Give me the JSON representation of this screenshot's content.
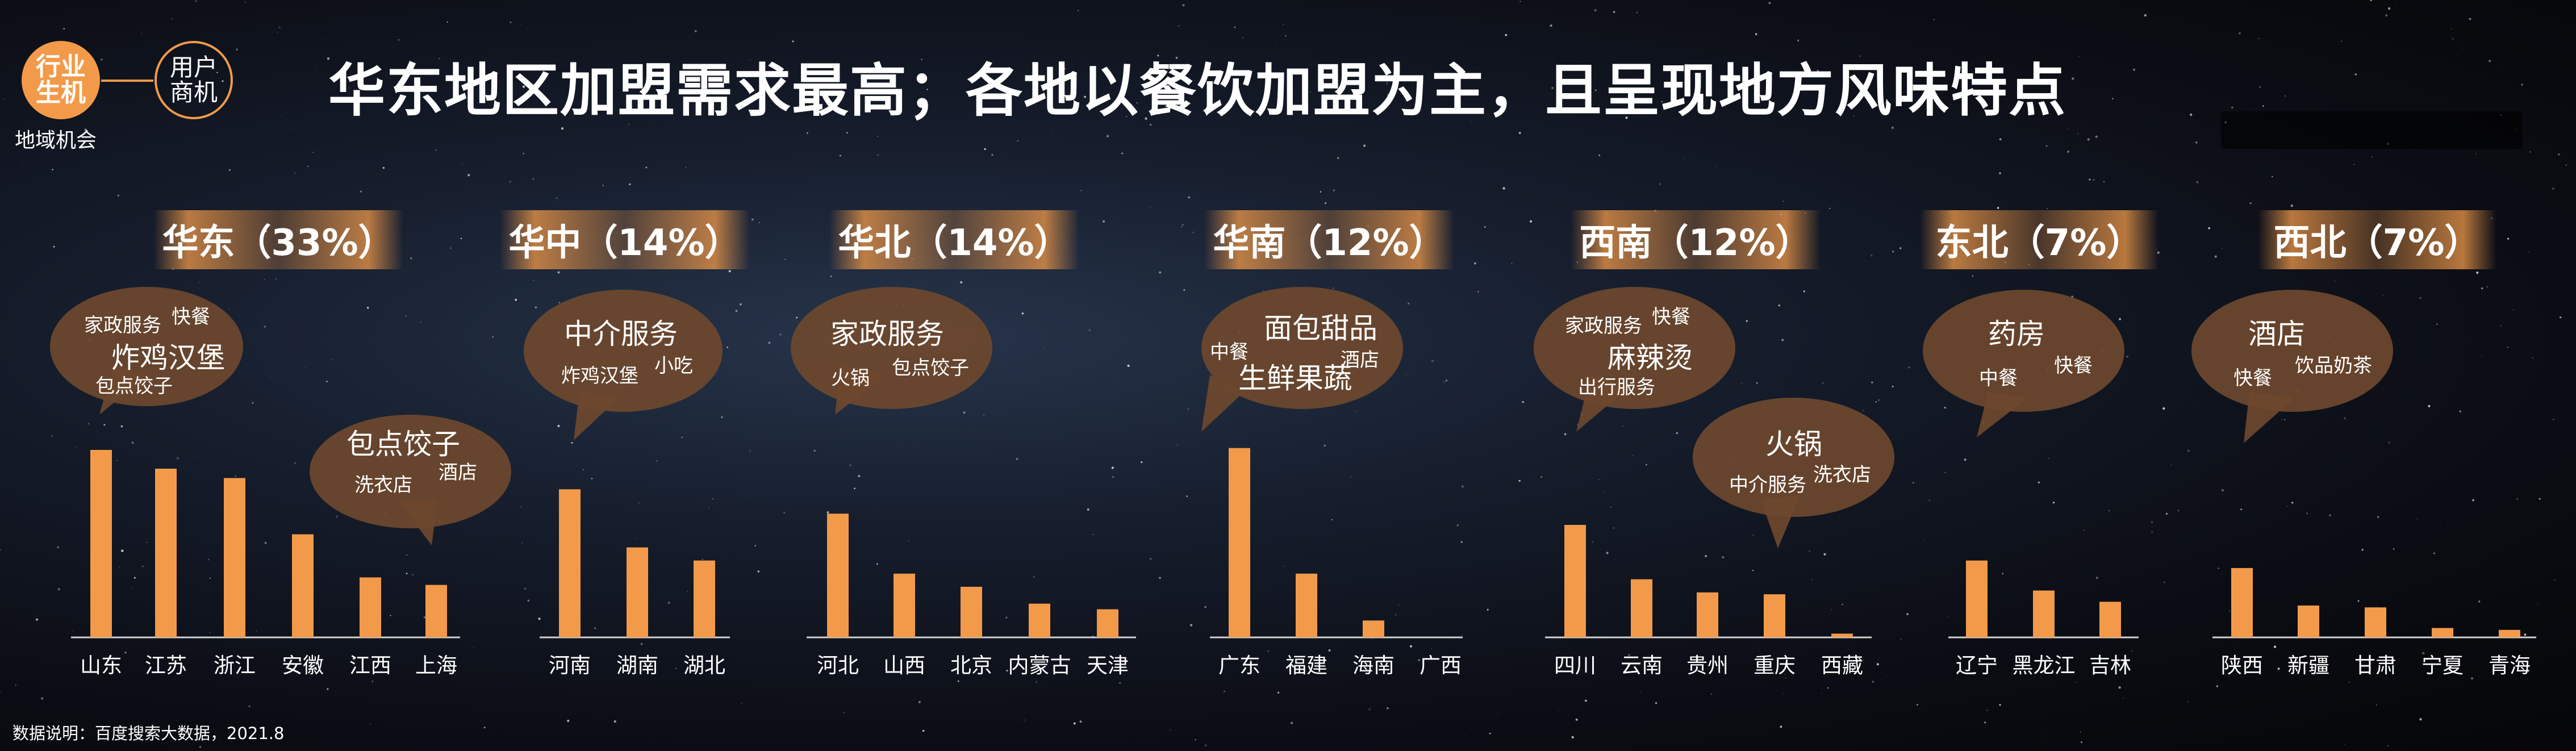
{
  "header": {
    "badge_industry": "行业生机",
    "badge_industry_l1": "行业",
    "badge_industry_l2": "生机",
    "badge_user_l1": "用户",
    "badge_user_l2": "商机",
    "sublabel": "地域机会",
    "title": "华东地区加盟需求最高；各地以餐饮加盟为主，且呈现地方风味特点"
  },
  "regions": [
    {
      "label": "华东（33%）"
    },
    {
      "label": "华中（14%）"
    },
    {
      "label": "华北（14%）"
    },
    {
      "label": "华南（12%）"
    },
    {
      "label": "西南（12%）"
    },
    {
      "label": "东北（7%）"
    },
    {
      "label": "西北（7%）"
    }
  ],
  "bubbles": {
    "huadong1": {
      "t1": "家政服务",
      "t2": "快餐",
      "t3": "炸鸡汉堡",
      "t4": "包点饺子"
    },
    "huadong2": {
      "t1": "包点饺子",
      "t2": "洗衣店",
      "t3": "酒店"
    },
    "huazhong": {
      "t1": "中介服务",
      "t2": "炸鸡汉堡",
      "t3": "小吃"
    },
    "huabei": {
      "t1": "家政服务",
      "t2": "火锅",
      "t3": "包点饺子"
    },
    "huanan": {
      "t1": "面包甜品",
      "t2": "中餐",
      "t3": "酒店",
      "t4": "生鲜果蔬"
    },
    "xinan1": {
      "t1": "家政服务",
      "t2": "快餐",
      "t3": "麻辣烫",
      "t4": "出行服务"
    },
    "xinan2": {
      "t1": "火锅",
      "t2": "中介服务",
      "t3": "洗衣店"
    },
    "dongbei": {
      "t1": "药房",
      "t2": "中餐",
      "t3": "快餐"
    },
    "xibei": {
      "t1": "酒店",
      "t2": "快餐",
      "t3": "饮品奶茶"
    }
  },
  "colors": {
    "bar": "#f29a4a",
    "accent": "#f29a4a",
    "bubble": "#6e482e"
  },
  "source": "数据说明：百度搜索大数据，2021.8",
  "chart_data": {
    "type": "bar",
    "ylim": [
      0,
      100
    ],
    "groups": [
      {
        "region": "华东",
        "categories": [
          "山东",
          "江苏",
          "浙江",
          "安徽",
          "江西",
          "上海"
        ],
        "values": [
          100,
          90,
          85,
          55,
          32,
          28
        ]
      },
      {
        "region": "华中",
        "categories": [
          "河南",
          "湖南",
          "湖北"
        ],
        "values": [
          79,
          48,
          41
        ]
      },
      {
        "region": "华北",
        "categories": [
          "河北",
          "山西",
          "北京",
          "内蒙古",
          "天津"
        ],
        "values": [
          66,
          34,
          27,
          18,
          15
        ]
      },
      {
        "region": "华南",
        "categories": [
          "广东",
          "福建",
          "海南",
          "广西"
        ],
        "values": [
          101,
          34,
          9,
          0
        ]
      },
      {
        "region": "西南",
        "categories": [
          "四川",
          "云南",
          "贵州",
          "重庆",
          "西藏"
        ],
        "values": [
          60,
          31,
          24,
          23,
          2
        ]
      },
      {
        "region": "东北",
        "categories": [
          "辽宁",
          "黑龙江",
          "吉林"
        ],
        "values": [
          41,
          25,
          19
        ]
      },
      {
        "region": "西北",
        "categories": [
          "陕西",
          "新疆",
          "甘肃",
          "宁夏",
          "青海"
        ],
        "values": [
          37,
          17,
          16,
          5,
          4
        ]
      }
    ]
  }
}
